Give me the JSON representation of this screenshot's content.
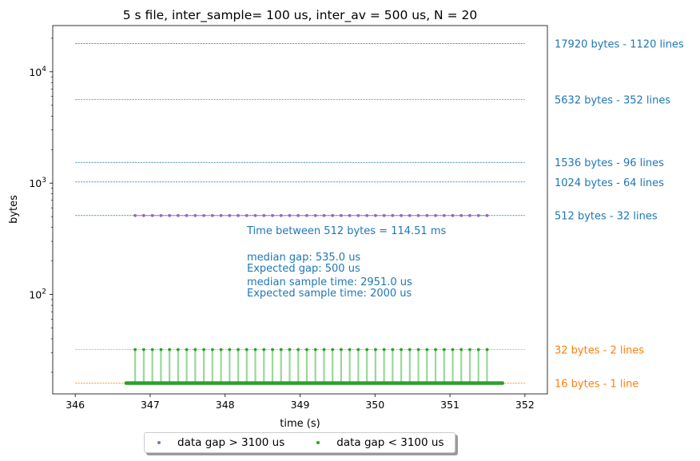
{
  "chart_data": {
    "type": "scatter",
    "title": "5 s file, inter_sample= 100 us, inter_av = 500 us, N = 20",
    "xlabel": "time (s)",
    "ylabel": "bytes",
    "xlim": [
      345.7,
      352.3
    ],
    "ylim": [
      12.8,
      26000
    ],
    "yscale": "log",
    "grid": false,
    "x_ticks": [
      346,
      347,
      348,
      349,
      350,
      351,
      352
    ],
    "x_tick_labels": [
      "346",
      "347",
      "348",
      "349",
      "350",
      "351",
      "352"
    ],
    "y_major_ticks": [
      100,
      1000,
      10000
    ],
    "y_tick_labels": [
      {
        "base": "10",
        "exp": "2"
      },
      {
        "base": "10",
        "exp": "3"
      },
      {
        "base": "10",
        "exp": "4"
      }
    ],
    "reference_lines": [
      {
        "y": 17920,
        "label": "17920 bytes - 1120 lines",
        "color": "#1f77b4"
      },
      {
        "y": 5632,
        "label": "5632 bytes - 352 lines",
        "color": "#1f77b4"
      },
      {
        "y": 1536,
        "label": "1536 bytes - 96 lines",
        "color": "#1f77b4"
      },
      {
        "y": 1024,
        "label": "1024 bytes - 64 lines",
        "color": "#1f77b4"
      },
      {
        "y": 512,
        "label": "512 bytes - 32 lines",
        "color": "#1f77b4"
      },
      {
        "y": 32,
        "label": "32 bytes - 2 lines",
        "color": "#ff7f0e"
      },
      {
        "y": 16,
        "label": "16 bytes - 1 line",
        "color": "#ff7f0e"
      }
    ],
    "reference_line_x_range": [
      346.0,
      352.0
    ],
    "series": [
      {
        "name": "data gap > 3100 us",
        "color": "#9467bd",
        "y": 512,
        "x_start": 346.8,
        "x_step": 0.11451,
        "count": 42,
        "joined": true
      },
      {
        "name": "data gap < 3100 us",
        "color": "#2ca02c",
        "y_base": 16,
        "x_base_range": [
          346.68,
          351.7
        ],
        "y_spike": 32,
        "spike_x_start": 346.8,
        "spike_x_step": 0.11451,
        "spike_count": 42
      }
    ],
    "annotations": [
      "Time between 512 bytes = 114.51 ms",
      "median gap: 535.0 us",
      "Expected gap: 500 us",
      "median sample time: 2951.0 us",
      "Expected sample time: 2000 us"
    ],
    "annotation_color": "#1f77b4",
    "legend_position": "below center"
  }
}
